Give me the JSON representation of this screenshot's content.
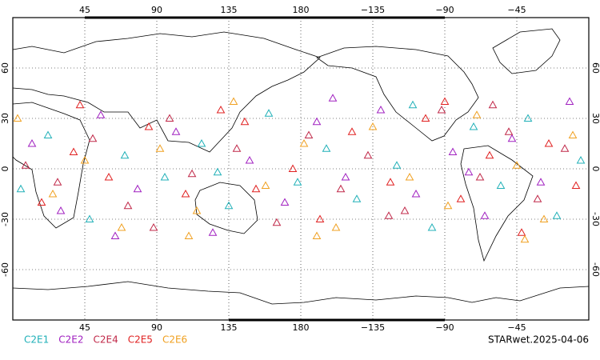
{
  "chart_data": {
    "type": "scatter",
    "title": "STARwet.2025-04-06",
    "xlim": [
      0,
      360
    ],
    "ylim": [
      -90,
      90
    ],
    "xticks": [
      45,
      90,
      135,
      180,
      {
        "value": 225,
        "label": "−135"
      },
      {
        "value": 270,
        "label": "−90"
      },
      {
        "value": 315,
        "label": "−45"
      }
    ],
    "yticks": [
      60,
      30,
      0,
      -30,
      -60
    ],
    "grid": true,
    "series": [
      {
        "name": "C2E1",
        "color": "#20b0b8",
        "x": [
          5,
          22,
          48,
          70,
          95,
          118,
          135,
          160,
          178,
          196,
          215,
          240,
          262,
          288,
          305,
          322,
          340,
          355,
          128,
          250
        ],
        "values": [
          -12,
          20,
          -30,
          8,
          -5,
          15,
          -22,
          33,
          -8,
          12,
          -18,
          2,
          -35,
          25,
          -10,
          30,
          -28,
          5,
          -2,
          38
        ]
      },
      {
        "name": "C2E2",
        "color": "#a020c0",
        "x": [
          12,
          30,
          55,
          78,
          102,
          125,
          148,
          170,
          190,
          208,
          230,
          252,
          275,
          295,
          312,
          330,
          348,
          64,
          200,
          285
        ],
        "values": [
          15,
          -25,
          32,
          -12,
          22,
          -38,
          5,
          -20,
          28,
          -5,
          35,
          -15,
          10,
          -28,
          18,
          -8,
          40,
          -40,
          42,
          -2
        ]
      },
      {
        "name": "C2E4",
        "color": "#c02848",
        "x": [
          8,
          28,
          50,
          72,
          98,
          112,
          140,
          165,
          185,
          205,
          222,
          245,
          268,
          292,
          310,
          328,
          345,
          88,
          235,
          300
        ],
        "values": [
          2,
          -8,
          18,
          -22,
          30,
          -3,
          12,
          -32,
          20,
          -12,
          8,
          -25,
          35,
          -5,
          22,
          -18,
          12,
          -35,
          -28,
          38
        ]
      },
      {
        "name": "C2E5",
        "color": "#e02020",
        "x": [
          18,
          38,
          60,
          85,
          108,
          130,
          152,
          175,
          192,
          212,
          236,
          258,
          280,
          298,
          318,
          335,
          352,
          145,
          270,
          42
        ],
        "values": [
          -20,
          10,
          -5,
          25,
          -15,
          35,
          -12,
          0,
          -30,
          22,
          -8,
          30,
          -18,
          8,
          -38,
          15,
          -10,
          28,
          40,
          38
        ]
      },
      {
        "name": "C2E6",
        "color": "#f0a020",
        "x": [
          3,
          25,
          45,
          68,
          92,
          115,
          138,
          158,
          182,
          202,
          225,
          248,
          272,
          290,
          315,
          332,
          350,
          110,
          190,
          320
        ],
        "values": [
          30,
          -15,
          5,
          -35,
          12,
          -25,
          40,
          -10,
          15,
          -35,
          25,
          -5,
          -22,
          32,
          2,
          -30,
          20,
          -40,
          -40,
          -42
        ]
      }
    ]
  }
}
